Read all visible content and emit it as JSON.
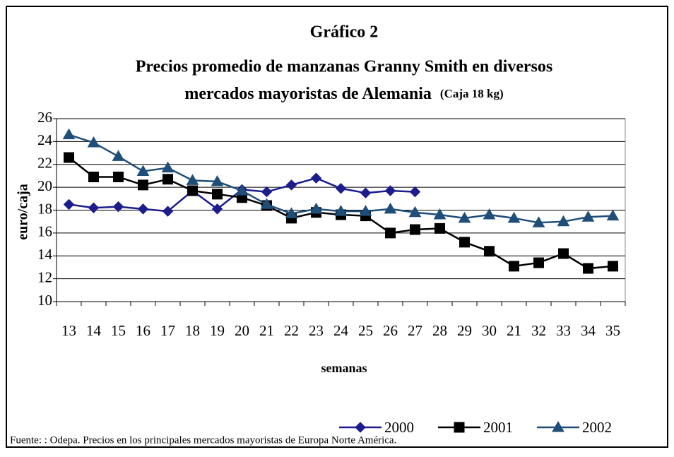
{
  "chart_data": {
    "type": "line",
    "title": "Gráfico 2",
    "subtitle": [
      "Precios promedio de manzanas Granny Smith en diversos",
      "mercados mayoristas de Alemania"
    ],
    "subtitle_note": "(Caja 18 kg)",
    "y_label": "euro/caja",
    "x_label": "semanas",
    "source": "Fuente: : Odepa. Precios en los principales mercados mayoristas de Europa Norte América.",
    "categories": [
      "13",
      "14",
      "15",
      "16",
      "17",
      "18",
      "19",
      "20",
      "21",
      "22",
      "23",
      "24",
      "25",
      "26",
      "27",
      "28",
      "29",
      "30",
      "21",
      "32",
      "33",
      "34",
      "35"
    ],
    "series": [
      {
        "name": "2000",
        "color": "#1c1c8c",
        "marker": "diamond",
        "values": [
          18.5,
          18.2,
          18.3,
          18.1,
          17.9,
          19.7,
          18.1,
          19.8,
          19.6,
          20.2,
          20.8,
          19.9,
          19.5,
          19.7,
          19.6,
          null,
          null,
          null,
          null,
          null,
          null,
          null,
          null
        ]
      },
      {
        "name": "2001",
        "color": "#000000",
        "marker": "square",
        "values": [
          22.6,
          20.9,
          20.9,
          20.2,
          20.7,
          19.7,
          19.4,
          19.1,
          18.4,
          17.3,
          17.8,
          17.6,
          17.5,
          16.0,
          16.3,
          16.4,
          15.2,
          14.4,
          13.1,
          13.4,
          14.2,
          12.9,
          13.1
        ]
      },
      {
        "name": "2002",
        "color": "#1f4e79",
        "marker": "triangle",
        "values": [
          24.6,
          23.9,
          22.7,
          21.4,
          21.7,
          20.6,
          20.5,
          19.7,
          18.5,
          17.7,
          18.1,
          17.9,
          17.9,
          18.1,
          17.8,
          17.6,
          17.3,
          17.6,
          17.3,
          16.9,
          17.0,
          17.4,
          17.5
        ]
      }
    ],
    "ylim": [
      10,
      26
    ],
    "yticks": [
      10,
      12,
      14,
      16,
      18,
      20,
      22,
      24,
      26
    ],
    "grid": true,
    "legend": "bottom"
  }
}
